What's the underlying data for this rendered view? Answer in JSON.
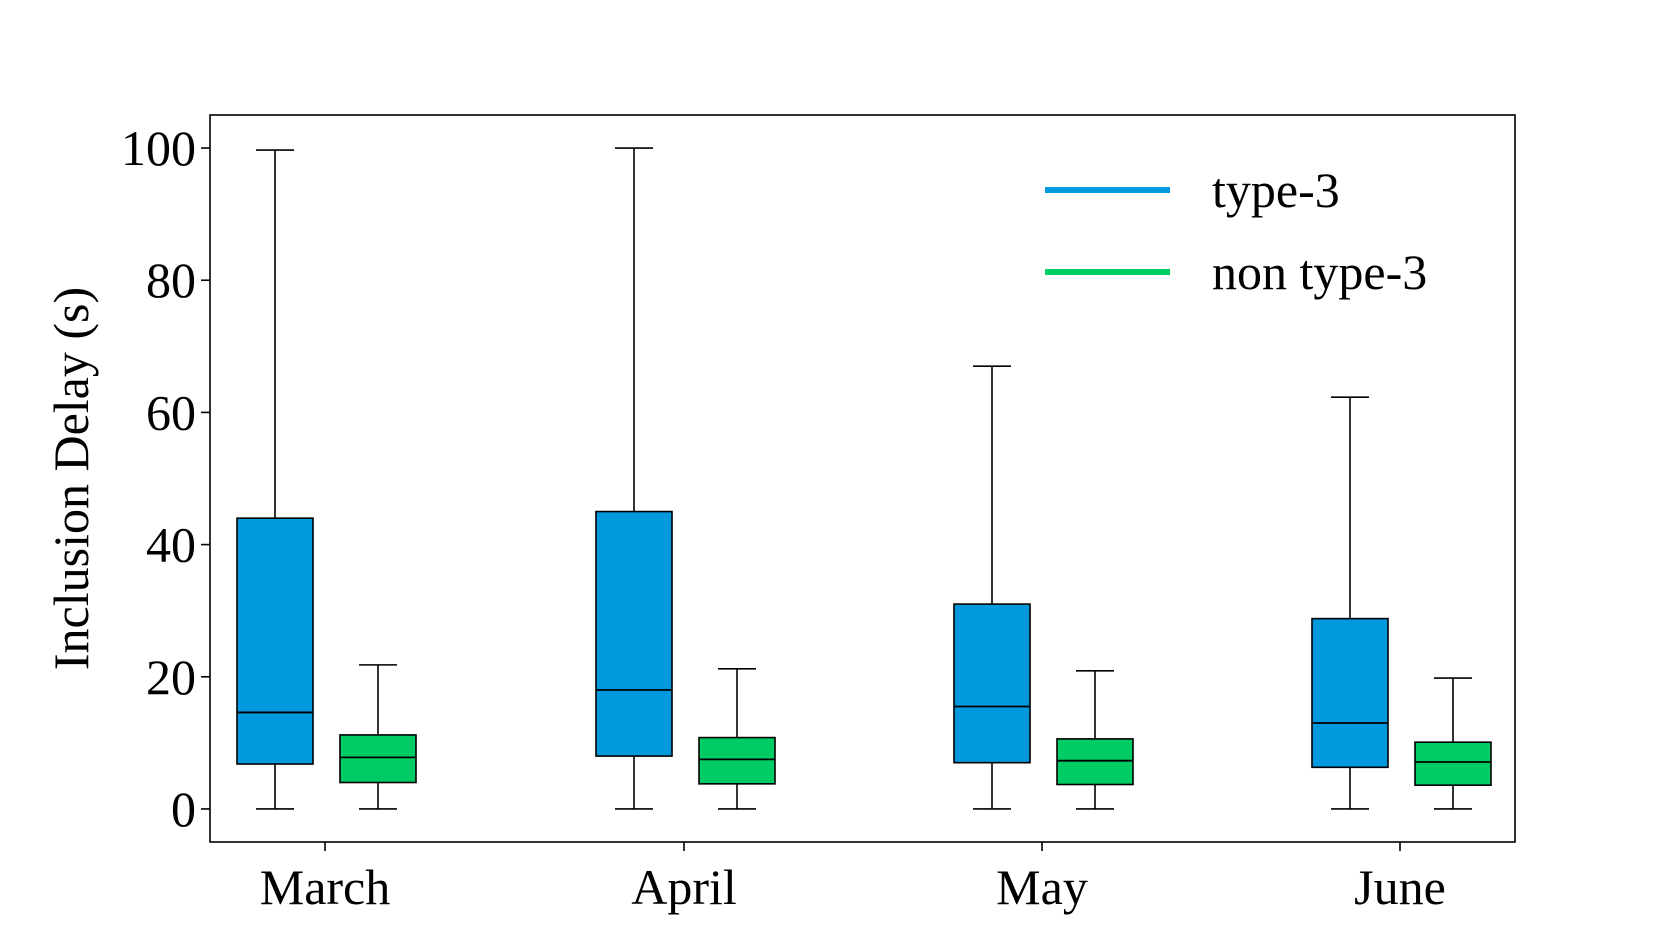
{
  "chart_data": {
    "type": "box",
    "categories": [
      "March",
      "April",
      "May",
      "June"
    ],
    "ylabel": "Inclusion Delay (s)",
    "xlabel": "",
    "ylim": [
      -5,
      105
    ],
    "yticks": [
      0,
      20,
      40,
      60,
      80,
      100
    ],
    "ytick_labels": [
      "0",
      "20",
      "40",
      "60",
      "80",
      "100"
    ],
    "grid": false,
    "legend_position": "top-right",
    "series": [
      {
        "name": "type-3",
        "color": "#0099dd",
        "boxes": [
          {
            "whisker_low": 0,
            "q1": 6.8,
            "median": 14.6,
            "q3": 44,
            "whisker_high": 99.7
          },
          {
            "whisker_low": 0,
            "q1": 8.0,
            "median": 18.0,
            "q3": 45,
            "whisker_high": 100
          },
          {
            "whisker_low": 0,
            "q1": 7.0,
            "median": 15.5,
            "q3": 31,
            "whisker_high": 67
          },
          {
            "whisker_low": 0,
            "q1": 6.3,
            "median": 13.0,
            "q3": 28.8,
            "whisker_high": 62.3
          }
        ]
      },
      {
        "name": "non type-3",
        "color": "#00cc66",
        "boxes": [
          {
            "whisker_low": 0,
            "q1": 4.0,
            "median": 7.8,
            "q3": 11.2,
            "whisker_high": 21.8
          },
          {
            "whisker_low": 0,
            "q1": 3.8,
            "median": 7.5,
            "q3": 10.8,
            "whisker_high": 21.2
          },
          {
            "whisker_low": 0,
            "q1": 3.7,
            "median": 7.3,
            "q3": 10.6,
            "whisker_high": 20.9
          },
          {
            "whisker_low": 0,
            "q1": 3.6,
            "median": 7.1,
            "q3": 10.1,
            "whisker_high": 19.8
          }
        ]
      }
    ]
  }
}
